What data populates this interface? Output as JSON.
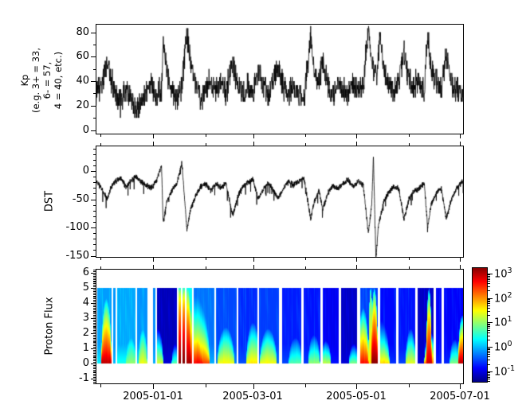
{
  "figure": {
    "bg": "#ffffff",
    "line_color": "#000000"
  },
  "panels": {
    "kp": {
      "ylabel_lines": [
        "Kp",
        "(e.g. 3+ = 33,",
        "6- = 57,",
        "4 = 40, etc.)"
      ]
    },
    "dst": {
      "ylabel": "DST"
    },
    "flux": {
      "ylabel": "Proton Flux"
    }
  },
  "xaxis": {
    "tick_labels": [
      "2005-01-01",
      "2005-03-01",
      "2005-05-01",
      "2005-07-01"
    ],
    "major_days": [
      34,
      93,
      154,
      215
    ],
    "minor_days": [
      3,
      65,
      124,
      185
    ],
    "domain_days": [
      0,
      217.4
    ],
    "start_date": "2004-11-28"
  },
  "colorbar": {
    "scale": "log",
    "base": "10",
    "exponents": [
      "-1",
      "0",
      "1",
      "2",
      "3"
    ],
    "range_log10": [
      -1.46,
      3.25
    ],
    "colormap": "jet"
  },
  "chart_data": [
    {
      "id": "kp",
      "type": "line",
      "title": "Kp",
      "ylabel": "Kp (e.g. 3+ = 33, 6- = 57, 4 = 40, etc.)",
      "yticks": [
        0,
        20,
        40,
        60,
        80
      ],
      "ytick_labels": [
        "0",
        "20",
        "40",
        "60",
        "80"
      ],
      "y_minor_step": 10,
      "ylim": [
        -3.6,
        86.5
      ],
      "x_unit": "days since 2004-11-28",
      "samples_per_day": 8,
      "noise_amp": 13,
      "keyframes": [
        [
          0,
          28
        ],
        [
          3,
          35
        ],
        [
          7,
          57
        ],
        [
          9,
          42
        ],
        [
          12,
          30
        ],
        [
          15,
          22
        ],
        [
          18,
          33
        ],
        [
          21,
          26
        ],
        [
          24,
          14
        ],
        [
          27,
          24
        ],
        [
          30,
          30
        ],
        [
          33,
          38
        ],
        [
          36,
          28
        ],
        [
          39,
          33
        ],
        [
          40,
          77
        ],
        [
          42,
          50
        ],
        [
          45,
          33
        ],
        [
          48,
          27
        ],
        [
          51,
          36
        ],
        [
          54,
          81
        ],
        [
          56,
          55
        ],
        [
          59,
          38
        ],
        [
          62,
          26
        ],
        [
          65,
          33
        ],
        [
          68,
          44
        ],
        [
          71,
          30
        ],
        [
          74,
          38
        ],
        [
          77,
          30
        ],
        [
          81,
          52
        ],
        [
          84,
          38
        ],
        [
          87,
          27
        ],
        [
          90,
          36
        ],
        [
          93,
          30
        ],
        [
          96,
          48
        ],
        [
          99,
          38
        ],
        [
          102,
          28
        ],
        [
          105,
          42
        ],
        [
          108,
          50
        ],
        [
          111,
          36
        ],
        [
          114,
          28
        ],
        [
          117,
          35
        ],
        [
          120,
          30
        ],
        [
          123,
          25
        ],
        [
          127,
          75
        ],
        [
          129,
          48
        ],
        [
          132,
          38
        ],
        [
          134,
          58
        ],
        [
          137,
          35
        ],
        [
          140,
          28
        ],
        [
          143,
          38
        ],
        [
          146,
          33
        ],
        [
          149,
          28
        ],
        [
          152,
          38
        ],
        [
          155,
          30
        ],
        [
          158,
          36
        ],
        [
          161,
          83
        ],
        [
          163,
          55
        ],
        [
          166,
          45
        ],
        [
          168,
          80
        ],
        [
          170,
          50
        ],
        [
          173,
          38
        ],
        [
          176,
          30
        ],
        [
          179,
          40
        ],
        [
          182,
          62
        ],
        [
          185,
          42
        ],
        [
          188,
          34
        ],
        [
          191,
          40
        ],
        [
          194,
          32
        ],
        [
          196,
          78
        ],
        [
          198,
          50
        ],
        [
          201,
          38
        ],
        [
          204,
          33
        ],
        [
          207,
          63
        ],
        [
          210,
          40
        ],
        [
          213,
          33
        ],
        [
          216,
          30
        ]
      ]
    },
    {
      "id": "dst",
      "type": "line",
      "title": "DST",
      "ylabel": "DST",
      "yticks": [
        0,
        -50,
        -100,
        -150
      ],
      "ytick_labels": [
        "0",
        "-50",
        "-100",
        "-150"
      ],
      "y_minor_step": 10,
      "ylim": [
        -153.5,
        45
      ],
      "x_unit": "days since 2004-11-28",
      "samples_per_day": 12,
      "noise_amp": 6,
      "keyframes": [
        [
          0,
          -18
        ],
        [
          3,
          -28
        ],
        [
          7,
          -50
        ],
        [
          9,
          -30
        ],
        [
          12,
          -18
        ],
        [
          15,
          -12
        ],
        [
          18,
          -28
        ],
        [
          21,
          -18
        ],
        [
          24,
          -10
        ],
        [
          27,
          -20
        ],
        [
          30,
          -25
        ],
        [
          33,
          -30
        ],
        [
          36,
          -18
        ],
        [
          39,
          10
        ],
        [
          40,
          -93
        ],
        [
          42,
          -55
        ],
        [
          45,
          -35
        ],
        [
          48,
          -22
        ],
        [
          51,
          15
        ],
        [
          54,
          -105
        ],
        [
          56,
          -70
        ],
        [
          59,
          -45
        ],
        [
          62,
          -28
        ],
        [
          65,
          -22
        ],
        [
          68,
          -35
        ],
        [
          71,
          -22
        ],
        [
          74,
          -30
        ],
        [
          77,
          -22
        ],
        [
          81,
          -80
        ],
        [
          84,
          -45
        ],
        [
          87,
          -28
        ],
        [
          90,
          -20
        ],
        [
          93,
          -15
        ],
        [
          96,
          -50
        ],
        [
          99,
          -32
        ],
        [
          102,
          -20
        ],
        [
          105,
          -35
        ],
        [
          108,
          -48
        ],
        [
          111,
          -30
        ],
        [
          114,
          -18
        ],
        [
          117,
          -25
        ],
        [
          120,
          -18
        ],
        [
          123,
          -12
        ],
        [
          127,
          -85
        ],
        [
          129,
          -55
        ],
        [
          132,
          -35
        ],
        [
          134,
          -70
        ],
        [
          137,
          -40
        ],
        [
          140,
          -25
        ],
        [
          143,
          -32
        ],
        [
          146,
          -22
        ],
        [
          149,
          -15
        ],
        [
          152,
          -28
        ],
        [
          155,
          -18
        ],
        [
          158,
          -25
        ],
        [
          161,
          -110
        ],
        [
          163,
          -60
        ],
        [
          164,
          25
        ],
        [
          165.5,
          -155
        ],
        [
          167,
          -95
        ],
        [
          170,
          -55
        ],
        [
          173,
          -38
        ],
        [
          176,
          -28
        ],
        [
          179,
          -32
        ],
        [
          182,
          -85
        ],
        [
          185,
          -50
        ],
        [
          188,
          -35
        ],
        [
          191,
          -30
        ],
        [
          194,
          -22
        ],
        [
          196,
          -100
        ],
        [
          198,
          -60
        ],
        [
          201,
          -40
        ],
        [
          204,
          -30
        ],
        [
          207,
          -85
        ],
        [
          210,
          -50
        ],
        [
          213,
          -32
        ],
        [
          216,
          -20
        ]
      ]
    },
    {
      "id": "flux",
      "type": "heatmap",
      "title": "Proton Flux",
      "ylabel": "Proton Flux",
      "yticks": [
        -1,
        0,
        1,
        2,
        3,
        4,
        5,
        6
      ],
      "ytick_labels": [
        "-1",
        "0",
        "1",
        "2",
        "3",
        "4",
        "5",
        "6"
      ],
      "y_minor_step": 0.1,
      "ylim": [
        -1.37,
        6.26
      ],
      "data_y_range": [
        0,
        5
      ],
      "color_scale_log10": [
        -1.46,
        3.25
      ],
      "colormap": "jet",
      "x_unit": "days since 2004-11-28",
      "segments": [
        {
          "d": [
            1,
            9.5
          ],
          "base": -0.15,
          "bb": 0.4,
          "plumes": [
            {
              "c": 6.5,
              "w": 3,
              "h": 4.3,
              "v": 3.0
            }
          ]
        },
        {
          "d": [
            10.5,
            11.8
          ],
          "base": -0.2,
          "bb": 0.2,
          "plumes": []
        },
        {
          "d": [
            13,
            23.5
          ],
          "base": -0.1,
          "bb": 0.5,
          "plumes": [
            {
              "c": 21,
              "w": 3,
              "h": 1.7,
              "v": 1.0
            }
          ]
        },
        {
          "d": [
            24.5,
            30.5
          ],
          "base": -0.2,
          "bb": 0.4,
          "plumes": [
            {
              "c": 28,
              "w": 2.5,
              "h": 2.3,
              "v": 1.4
            }
          ]
        },
        {
          "d": [
            34,
            35.2
          ],
          "base": -0.25,
          "bb": 0.2,
          "plumes": []
        },
        {
          "d": [
            36.5,
            48
          ],
          "base": -1.2,
          "bb": 0.15,
          "plumes": [
            {
              "c": 37,
              "w": 3,
              "h": 2.3,
              "v": 1.3
            },
            {
              "c": 47,
              "w": 2,
              "h": 1.3,
              "v": 0.7
            }
          ]
        },
        {
          "d": [
            49,
            50.6
          ],
          "base": 0.4,
          "bb": 0.3,
          "plumes": [
            {
              "c": 49.8,
              "w": 2.2,
              "h": 5,
              "v": 3.2,
              "p": 0.5
            }
          ]
        },
        {
          "d": [
            51.6,
            52.8
          ],
          "base": 0.5,
          "bb": 0.3,
          "plumes": [
            {
              "c": 52.2,
              "w": 1.6,
              "h": 5,
              "v": 3.3,
              "p": 0.5
            }
          ]
        },
        {
          "d": [
            53.8,
            57.2
          ],
          "base": 0.3,
          "bb": 0.3,
          "plumes": [
            {
              "c": 54.5,
              "w": 2,
              "h": 5,
              "v": 3.1,
              "p": 0.6
            },
            {
              "c": 56.5,
              "w": 2,
              "h": 3.6,
              "v": 2.6
            }
          ]
        },
        {
          "d": [
            58.2,
            70
          ],
          "base": -0.35,
          "bb": 0.3,
          "plumes": [
            {
              "c": 58.5,
              "w": 9,
              "h": 4.6,
              "v": 2.4,
              "p": 1.2
            },
            {
              "c": 59.5,
              "w": 4,
              "h": 3,
              "v": 2.7
            }
          ]
        },
        {
          "d": [
            71,
            83.5
          ],
          "base": -0.55,
          "bb": 0.3,
          "plumes": [
            {
              "c": 77,
              "w": 5,
              "h": 2.4,
              "v": 1.5
            }
          ]
        },
        {
          "d": [
            84.5,
            95.5
          ],
          "base": -0.7,
          "bb": 0.2,
          "plumes": [
            {
              "c": 93,
              "w": 4,
              "h": 2.7,
              "v": 1.6
            }
          ]
        },
        {
          "d": [
            96.5,
            108.5
          ],
          "base": -0.6,
          "bb": 0.25,
          "plumes": [
            {
              "c": 102,
              "w": 5,
              "h": 2.3,
              "v": 1.5
            }
          ]
        },
        {
          "d": [
            110,
            121.5
          ],
          "base": -0.75,
          "bb": 0.2,
          "plumes": [
            {
              "c": 118,
              "w": 4,
              "h": 1.7,
              "v": 0.7
            }
          ]
        },
        {
          "d": [
            123,
            132.5
          ],
          "base": -0.8,
          "bb": 0.2,
          "plumes": [
            {
              "c": 129,
              "w": 3.5,
              "h": 1.9,
              "v": 1.0
            }
          ]
        },
        {
          "d": [
            134,
            143.5
          ],
          "base": -0.95,
          "bb": 0.15,
          "plumes": [
            {
              "c": 136,
              "w": 3,
              "h": 1.5,
              "v": 1.2
            }
          ]
        },
        {
          "d": [
            145,
            154.5
          ],
          "base": -1.15,
          "bb": 0.1,
          "plumes": [
            {
              "c": 152.5,
              "w": 3,
              "h": 1.3,
              "v": 0.9
            }
          ]
        },
        {
          "d": [
            156,
            166.6
          ],
          "base": -0.6,
          "bb": 0.3,
          "plumes": [
            {
              "c": 158,
              "w": 3.2,
              "h": 3.7,
              "v": 2.6
            },
            {
              "c": 162.4,
              "w": 1.3,
              "h": 5,
              "v": 1.6,
              "p": 0.25
            },
            {
              "c": 164.6,
              "w": 2,
              "h": 5,
              "v": 3.2,
              "p": 0.5
            }
          ]
        },
        {
          "d": [
            168,
            177.5
          ],
          "base": -0.85,
          "bb": 0.2,
          "plumes": [
            {
              "c": 168.5,
              "w": 5,
              "h": 2.9,
              "v": 1.7,
              "p": 1.1
            }
          ]
        },
        {
          "d": [
            179,
            188.5
          ],
          "base": -0.8,
          "bb": 0.25,
          "plumes": [
            {
              "c": 186,
              "w": 3,
              "h": 2.3,
              "v": 1.4
            }
          ]
        },
        {
          "d": [
            190,
            199.5
          ],
          "base": -1.15,
          "bb": 0.1,
          "plumes": [
            {
              "c": 196.8,
              "w": 1.6,
              "h": 5,
              "v": 2.9,
              "p": 0.4
            },
            {
              "c": 197.5,
              "w": 3.5,
              "h": 2.1,
              "v": 2.2
            }
          ]
        },
        {
          "d": [
            200.8,
            204.2
          ],
          "base": -0.9,
          "bb": 0.15,
          "plumes": []
        },
        {
          "d": [
            205.5,
            217.3
          ],
          "base": -0.9,
          "bb": 0.2,
          "plumes": [
            {
              "c": 212,
              "w": 3,
              "h": 1.6,
              "v": 0.9
            },
            {
              "c": 216.5,
              "w": 2.5,
              "h": 3.2,
              "v": 3.0,
              "p": 0.6
            }
          ]
        }
      ]
    }
  ]
}
